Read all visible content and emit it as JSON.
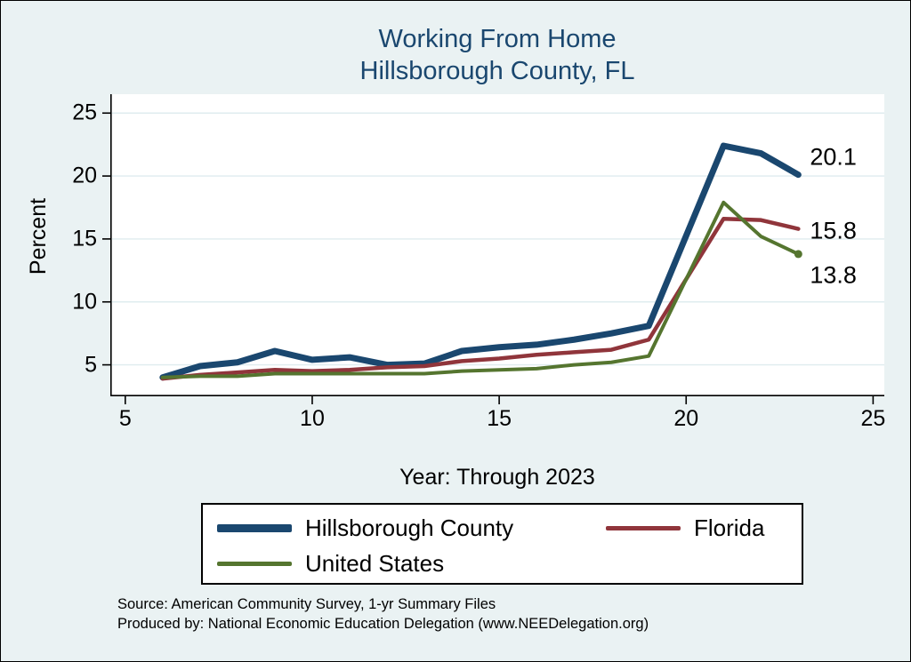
{
  "title": {
    "line1": "Working From Home",
    "line2": "Hillsborough County, FL"
  },
  "colors": {
    "background": "#eaf2f3",
    "plot_background": "#ffffff",
    "grid": "#dfecef",
    "axis": "#000000",
    "title_text": "#1a476f",
    "hillsborough": "#1a476f",
    "florida": "#90353b",
    "united_states": "#55752f"
  },
  "chart_data": {
    "type": "line",
    "title": "Working From Home Hillsborough County, FL",
    "xlabel": "Year: Through 2023",
    "ylabel": "Percent",
    "xlim": [
      4.6,
      25.3
    ],
    "ylim": [
      2.5,
      26.5
    ],
    "xticks": [
      5,
      10,
      15,
      20,
      25
    ],
    "yticks": [
      5,
      10,
      15,
      20,
      25
    ],
    "grid": "horizontal",
    "legend_position": "bottom",
    "x": [
      6,
      7,
      8,
      9,
      10,
      11,
      12,
      13,
      14,
      15,
      16,
      17,
      18,
      19,
      21,
      22,
      23
    ],
    "series": [
      {
        "name": "Hillsborough County",
        "color_key": "hillsborough",
        "width": 7,
        "swatch_h": 9,
        "end_label": "20.1",
        "label_dy": -20,
        "end_marker": false,
        "values": [
          4.0,
          4.9,
          5.2,
          6.1,
          5.4,
          5.6,
          5.0,
          5.1,
          6.1,
          6.4,
          6.6,
          7.0,
          7.5,
          8.1,
          22.4,
          21.8,
          20.1
        ]
      },
      {
        "name": "Florida",
        "color_key": "florida",
        "width": 4.5,
        "swatch_h": 5,
        "end_label": "15.8",
        "label_dy": 2,
        "end_marker": false,
        "values": [
          3.9,
          4.2,
          4.4,
          4.6,
          4.5,
          4.6,
          4.8,
          4.9,
          5.3,
          5.5,
          5.8,
          6.0,
          6.2,
          7.0,
          16.6,
          16.5,
          15.8
        ]
      },
      {
        "name": "United States",
        "color_key": "united_states",
        "width": 4,
        "swatch_h": 5,
        "end_label": "13.8",
        "label_dy": 24,
        "end_marker": true,
        "values": [
          4.0,
          4.1,
          4.1,
          4.3,
          4.3,
          4.3,
          4.3,
          4.3,
          4.5,
          4.6,
          4.7,
          5.0,
          5.2,
          5.7,
          17.9,
          15.2,
          13.8
        ]
      }
    ]
  },
  "footer": {
    "source": "Source: American Community Survey, 1-yr Summary Files",
    "produced_by": "Produced by: National Economic Education Delegation (www.NEEDelegation.org)"
  }
}
